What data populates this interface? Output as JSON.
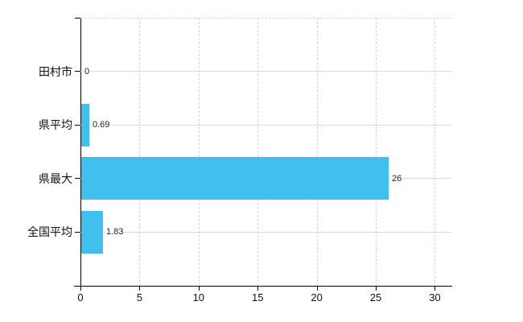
{
  "chart_data": {
    "type": "bar",
    "orientation": "horizontal",
    "title": "",
    "xlabel": "",
    "ylabel": "",
    "categories": [
      "田村市",
      "県平均",
      "県最大",
      "全国平均"
    ],
    "values": [
      0,
      0.69,
      26,
      1.83
    ],
    "value_labels": [
      "0",
      "0.69",
      "26",
      "1.83"
    ],
    "x_tick_labels": [
      "0",
      "5",
      "10",
      "15",
      "20",
      "25",
      "30"
    ],
    "x_tick_values": [
      0,
      5,
      10,
      15,
      20,
      25,
      30
    ],
    "xlim": [
      0,
      31.4
    ],
    "grid": true,
    "legend": false,
    "colors": {
      "bar": "#40c0ee",
      "axis": "#000000",
      "grid_vertical": "#d9ced9",
      "grid_horizontal": "#d4dcd4",
      "category_text": "#111111",
      "value_text": "#222222",
      "tick_text": "#111111",
      "background": "#ffffff"
    }
  }
}
